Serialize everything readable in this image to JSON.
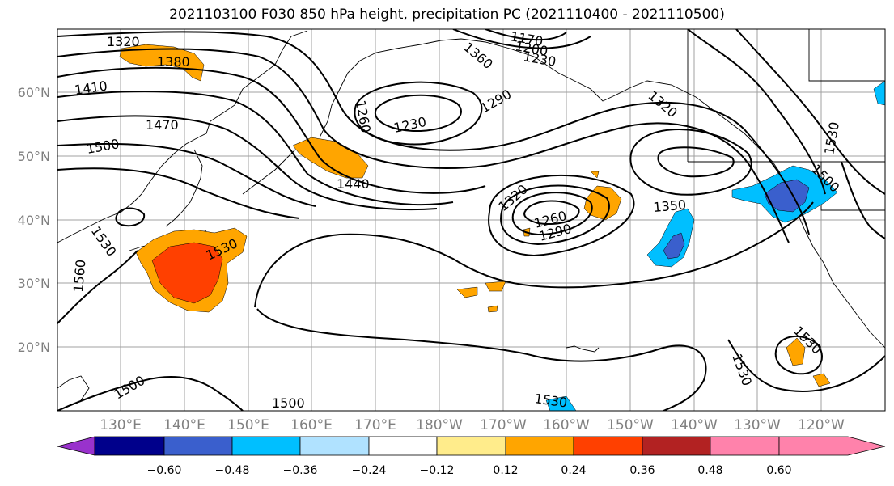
{
  "title": "2021103100 F030 850 hPa height, precipitation PC (2021110400 - 2021110500)",
  "lat_labels": [
    "60°N",
    "50°N",
    "40°N",
    "30°N",
    "20°N"
  ],
  "lon_labels": [
    "130°E",
    "140°E",
    "150°E",
    "160°E",
    "170°E",
    "180°W",
    "170°W",
    "160°W",
    "150°W",
    "140°W",
    "130°W",
    "120°W"
  ],
  "contour_labels": [
    "1320",
    "1380",
    "1410",
    "1470",
    "1500",
    "1440",
    "1260",
    "1230",
    "1290",
    "1170",
    "1200",
    "1230",
    "1360",
    "1320",
    "1350",
    "1320",
    "1260",
    "1290",
    "1530",
    "1560",
    "1530",
    "1500",
    "1500",
    "1530",
    "1530",
    "1530",
    "1530",
    "1500"
  ],
  "colorbar": {
    "ticks": [
      "−0.60",
      "−0.48",
      "−0.36",
      "−0.24",
      "−0.12",
      "0.12",
      "0.24",
      "0.36",
      "0.48",
      "0.60"
    ],
    "colors": [
      "#9932cc",
      "#00008b",
      "#3a5fcd",
      "#00bfff",
      "#b0e2ff",
      "#ffffff",
      "#ffec8b",
      "#ffa500",
      "#ff4000",
      "#b22222",
      "#ff82ab"
    ]
  }
}
